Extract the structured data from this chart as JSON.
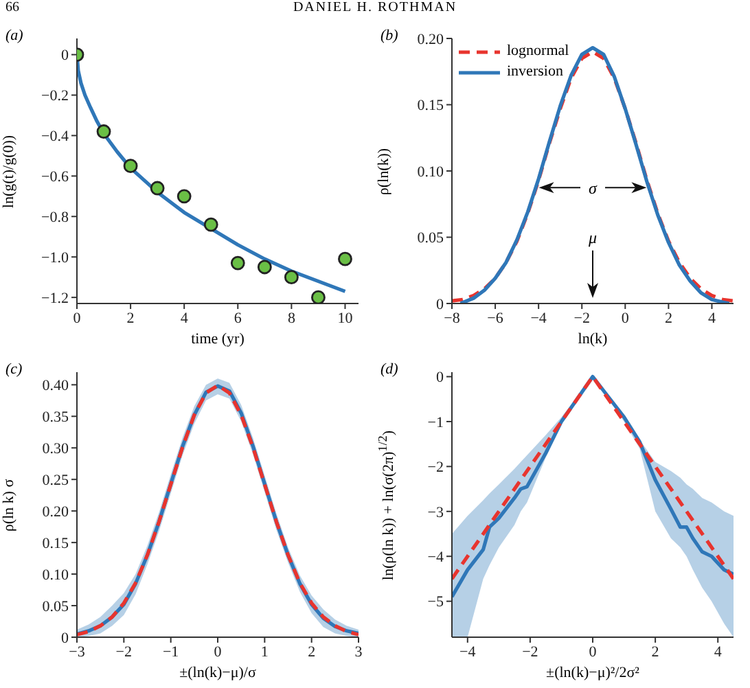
{
  "chart_data": [
    {
      "type": "scatter",
      "title": "(a)",
      "xlabel": "time (yr)",
      "ylabel": "ln(g(t)/g(0))",
      "annotations": [
        "66",
        "DANIEL H. ROTHMAN"
      ],
      "xlim": [
        0,
        10.5
      ],
      "xticks": [
        0,
        2,
        4,
        6,
        8,
        10
      ],
      "ylim": [
        -1.23,
        0.08
      ],
      "yticks": [
        0,
        {
          "value": -0.2,
          "label": "−0.2"
        },
        {
          "value": -0.4,
          "label": "−0.4"
        },
        {
          "value": -0.6,
          "label": "−0.6"
        },
        {
          "value": -0.8,
          "label": "−0.8"
        },
        {
          "value": -1.0,
          "label": "−1.0"
        },
        {
          "value": -1.2,
          "label": "−1.2"
        }
      ],
      "grid": false,
      "legend": false,
      "series": [
        {
          "type": "line",
          "color": "#2f77b8",
          "line_style": "solid",
          "marker": "none",
          "x": [
            0,
            0.05,
            0.15,
            0.3,
            0.5,
            0.75,
            1,
            1.5,
            2,
            3,
            4,
            5,
            6,
            7,
            8,
            9,
            10
          ],
          "values": [
            0,
            -0.08,
            -0.14,
            -0.2,
            -0.26,
            -0.33,
            -0.39,
            -0.48,
            -0.56,
            -0.68,
            -0.78,
            -0.86,
            -0.94,
            -1.01,
            -1.07,
            -1.12,
            -1.17
          ]
        },
        {
          "type": "scatter",
          "color": "#6abf45",
          "marker": "circle",
          "x": [
            0,
            1,
            2,
            3,
            4,
            5,
            6,
            7,
            8,
            9,
            10
          ],
          "values": [
            0,
            -0.38,
            -0.55,
            -0.66,
            -0.7,
            -0.84,
            -1.03,
            -1.05,
            -1.1,
            -1.2,
            -1.01
          ]
        }
      ]
    },
    {
      "type": "line",
      "title": "(b)",
      "xlabel": "ln(k)",
      "ylabel": "ρ(ln(k))",
      "annotations": [
        "σ",
        "μ"
      ],
      "xlim": [
        -8,
        5
      ],
      "xticks": [
        {
          "value": -8,
          "label": "−8"
        },
        {
          "value": -6,
          "label": "−6"
        },
        {
          "value": -4,
          "label": "−4"
        },
        {
          "value": -2,
          "label": "−2"
        },
        0,
        2,
        4
      ],
      "ylim": [
        0,
        0.2
      ],
      "yticks": [
        0,
        0.05,
        {
          "value": 0.1,
          "label": "0.10"
        },
        0.15,
        {
          "value": 0.2,
          "label": "0.20"
        }
      ],
      "grid": false,
      "legend": "top left",
      "series": [
        {
          "name": "lognormal",
          "color": "#e8342e",
          "line_style": "dashed",
          "x": [
            -8,
            -7.5,
            -7,
            -6.5,
            -6,
            -5.5,
            -5,
            -4.5,
            -4,
            -3.5,
            -3,
            -2.5,
            -2,
            -1.5,
            -1,
            -0.5,
            0,
            0.5,
            1,
            1.5,
            2,
            2.5,
            3,
            3.5,
            4,
            4.5,
            5
          ],
          "values": [
            0.002,
            0.003,
            0.006,
            0.011,
            0.019,
            0.031,
            0.047,
            0.068,
            0.093,
            0.121,
            0.147,
            0.17,
            0.185,
            0.19,
            0.185,
            0.17,
            0.147,
            0.121,
            0.093,
            0.068,
            0.047,
            0.031,
            0.019,
            0.011,
            0.006,
            0.003,
            0.002
          ]
        },
        {
          "name": "inversion",
          "color": "#2f77b8",
          "line_style": "solid",
          "x": [
            -7.6,
            -7,
            -6.5,
            -6,
            -5.5,
            -5,
            -4.5,
            -4,
            -3.5,
            -3,
            -2.5,
            -2,
            -1.5,
            -1,
            -0.5,
            0,
            0.5,
            1,
            1.5,
            2,
            2.5,
            3,
            3.5,
            4,
            4.5,
            4.8
          ],
          "values": [
            0,
            0.004,
            0.01,
            0.019,
            0.031,
            0.048,
            0.069,
            0.094,
            0.122,
            0.149,
            0.172,
            0.188,
            0.193,
            0.188,
            0.171,
            0.147,
            0.12,
            0.092,
            0.067,
            0.046,
            0.029,
            0.017,
            0.008,
            0.003,
            0.001,
            0
          ]
        }
      ]
    },
    {
      "type": "line",
      "title": "(c)",
      "xlabel": "±(ln(k)−μ)/σ",
      "ylabel": "ρ(ln k) σ",
      "xlim": [
        -3,
        3
      ],
      "xticks": [
        {
          "value": -3,
          "label": "−3"
        },
        {
          "value": -2,
          "label": "−2"
        },
        {
          "value": -1,
          "label": "−1"
        },
        0,
        1,
        2,
        3
      ],
      "ylim": [
        0,
        0.42
      ],
      "yticks": [
        0,
        0.05,
        {
          "value": 0.1,
          "label": "0.10"
        },
        0.15,
        {
          "value": 0.2,
          "label": "0.20"
        },
        0.25,
        {
          "value": 0.3,
          "label": "0.30"
        },
        0.35,
        {
          "value": 0.4,
          "label": "0.40"
        }
      ],
      "grid": false,
      "legend": false,
      "series": [
        {
          "color": "#2f77b8",
          "line_style": "solid",
          "x": [
            -3,
            -2.75,
            -2.5,
            -2.25,
            -2,
            -1.75,
            -1.5,
            -1.25,
            -1,
            -0.75,
            -0.5,
            -0.25,
            0,
            0.25,
            0.5,
            0.75,
            1,
            1.25,
            1.5,
            1.75,
            2,
            2.25,
            2.5,
            2.75,
            3
          ],
          "values": [
            0.005,
            0.01,
            0.018,
            0.032,
            0.052,
            0.085,
            0.13,
            0.183,
            0.243,
            0.302,
            0.352,
            0.388,
            0.398,
            0.39,
            0.355,
            0.303,
            0.243,
            0.183,
            0.13,
            0.085,
            0.052,
            0.03,
            0.017,
            0.01,
            0.006
          ],
          "lower": [
            0,
            0.002,
            0.006,
            0.018,
            0.035,
            0.068,
            0.115,
            0.168,
            0.228,
            0.288,
            0.338,
            0.375,
            0.385,
            0.378,
            0.342,
            0.29,
            0.23,
            0.17,
            0.118,
            0.072,
            0.038,
            0.016,
            0.006,
            0.002,
            0
          ],
          "upper": [
            0.012,
            0.02,
            0.032,
            0.05,
            0.07,
            0.1,
            0.145,
            0.198,
            0.258,
            0.316,
            0.366,
            0.4,
            0.41,
            0.403,
            0.368,
            0.316,
            0.256,
            0.196,
            0.142,
            0.098,
            0.066,
            0.044,
            0.028,
            0.018,
            0.012
          ]
        },
        {
          "color": "#e8342e",
          "line_style": "dashed",
          "x": [
            -3,
            -2.75,
            -2.5,
            -2.25,
            -2,
            -1.75,
            -1.5,
            -1.25,
            -1,
            -0.75,
            -0.5,
            -0.25,
            0,
            0.25,
            0.5,
            0.75,
            1,
            1.25,
            1.5,
            1.75,
            2,
            2.25,
            2.5,
            2.75,
            3
          ],
          "values": [
            0.004,
            0.009,
            0.018,
            0.032,
            0.054,
            0.086,
            0.13,
            0.183,
            0.242,
            0.301,
            0.352,
            0.387,
            0.399,
            0.387,
            0.352,
            0.301,
            0.242,
            0.183,
            0.13,
            0.086,
            0.054,
            0.032,
            0.018,
            0.009,
            0.004
          ]
        }
      ]
    },
    {
      "type": "line",
      "title": "(d)",
      "xlabel": "±(ln(k)−μ)²/2σ²",
      "ylabel": "ln(ρ(ln k)) + ln(σ(2π)$^{1/2}$)",
      "xlim": [
        -4.5,
        4.5
      ],
      "xticks": [
        {
          "value": -4,
          "label": "−4"
        },
        {
          "value": -2,
          "label": "−2"
        },
        0,
        2,
        4
      ],
      "ylim": [
        -5.8,
        0.1
      ],
      "yticks": [
        0,
        {
          "value": -1,
          "label": "−1"
        },
        {
          "value": -2,
          "label": "−2"
        },
        {
          "value": -3,
          "label": "−3"
        },
        {
          "value": -4,
          "label": "−4"
        },
        {
          "value": -5,
          "label": "−5"
        }
      ],
      "grid": false,
      "legend": false,
      "series": [
        {
          "color": "#2f77b8",
          "line_style": "solid",
          "x": [
            -4.5,
            -4,
            -3.5,
            -3.3,
            -3,
            -2.5,
            -2.3,
            -2.1,
            -1.5,
            -1,
            -0.5,
            0,
            0.5,
            1,
            1.5,
            2,
            2.5,
            2.8,
            3,
            3.2,
            3.5,
            3.8,
            4.2,
            4.5
          ],
          "values": [
            -4.9,
            -4.3,
            -3.85,
            -3.35,
            -3.15,
            -2.7,
            -2.5,
            -2.45,
            -1.7,
            -1.0,
            -0.5,
            0,
            -0.45,
            -0.9,
            -1.45,
            -2.3,
            -2.95,
            -3.35,
            -3.35,
            -3.6,
            -3.9,
            -4.0,
            -4.3,
            -4.4
          ],
          "lower": [
            -5.8,
            -5.8,
            -4.5,
            -4.2,
            -3.8,
            -3.3,
            -3.0,
            -2.8,
            -1.8,
            -1.05,
            -0.55,
            0,
            -0.5,
            -1.0,
            -1.6,
            -3.0,
            -3.6,
            -3.8,
            -4.0,
            -4.3,
            -4.7,
            -5.0,
            -5.5,
            -5.8
          ],
          "upper": [
            -3.5,
            -3.1,
            -2.75,
            -2.6,
            -2.4,
            -2.05,
            -1.9,
            -1.75,
            -1.3,
            -0.9,
            -0.45,
            0,
            -0.45,
            -0.9,
            -1.4,
            -1.9,
            -2.1,
            -2.25,
            -2.4,
            -2.5,
            -2.7,
            -2.8,
            -3.0,
            -3.1
          ]
        },
        {
          "color": "#e8342e",
          "line_style": "dashed",
          "x": [
            -4.5,
            0,
            4.5
          ],
          "values": [
            -4.5,
            0,
            -4.5
          ]
        }
      ]
    }
  ]
}
